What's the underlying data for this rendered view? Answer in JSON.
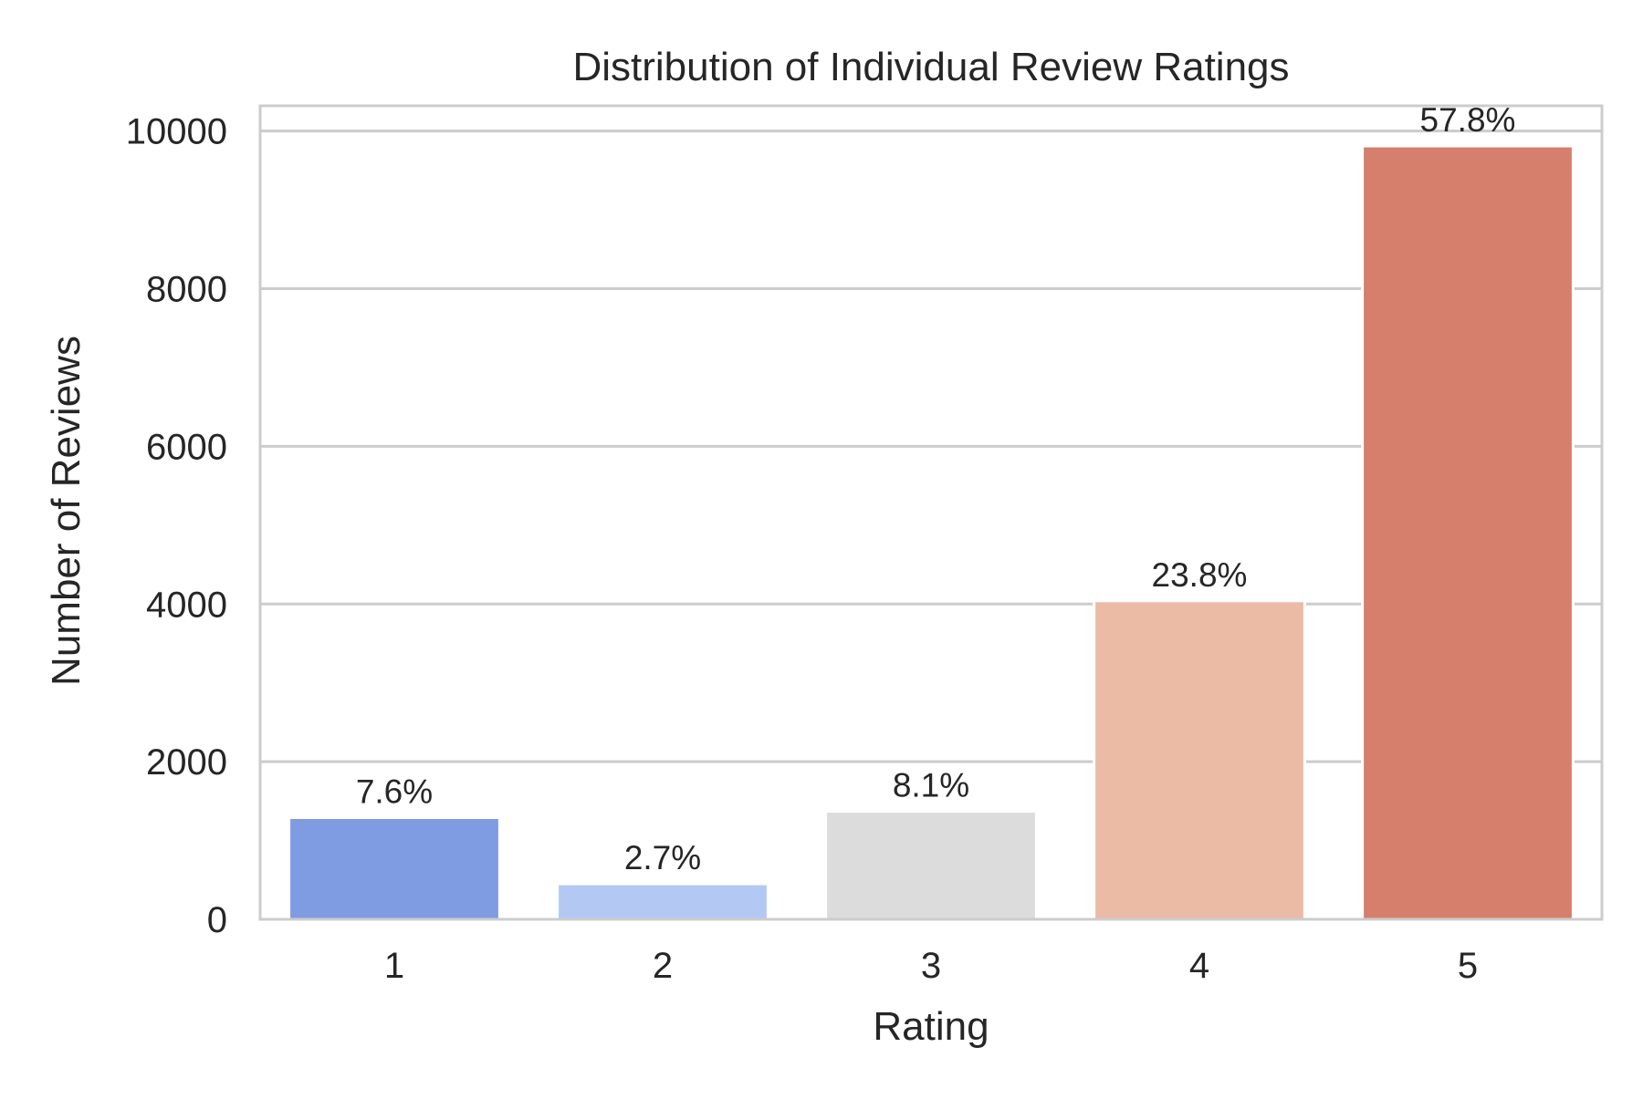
{
  "chart_data": {
    "type": "bar",
    "title": "Distribution of Individual Review Ratings",
    "xlabel": "Rating",
    "ylabel": "Number of Reviews",
    "categories": [
      "1",
      "2",
      "3",
      "4",
      "5"
    ],
    "values": [
      1290,
      450,
      1370,
      4040,
      9810
    ],
    "data_labels": [
      "7.6%",
      "2.7%",
      "8.1%",
      "23.8%",
      "57.8%"
    ],
    "ylim": [
      0,
      10320
    ],
    "yticks": [
      0,
      2000,
      4000,
      6000,
      8000,
      10000
    ],
    "ytick_labels": [
      "0",
      "2000",
      "4000",
      "6000",
      "8000",
      "10000"
    ],
    "grid": "y-axis on",
    "legend": "none",
    "colors": [
      "#7f9be1",
      "#b3c9f3",
      "#dcdcdc",
      "#ebbba5",
      "#d67f6c"
    ],
    "grid_color": "#cccccc",
    "frame_color": "#cccccc"
  }
}
